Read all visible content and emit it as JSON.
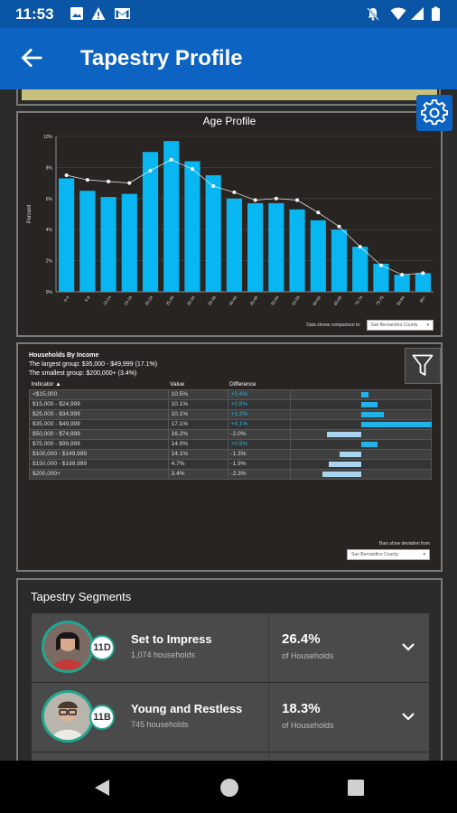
{
  "status_bar": {
    "time": "11:53",
    "icons_left": [
      "image-icon",
      "warning-icon",
      "gmail-icon"
    ],
    "icons_right": [
      "mute-icon",
      "wifi-icon",
      "signal-icon",
      "battery-icon"
    ]
  },
  "app_bar": {
    "title": "Tapestry Profile",
    "back_icon": "arrow-back-icon"
  },
  "settings_icon": "gear-icon",
  "age_profile": {
    "chart_data": {
      "type": "bar",
      "title": "Age Profile",
      "ylabel": "Percent",
      "ylim": [
        0,
        10
      ],
      "yticks": [
        "0%",
        "2%",
        "4%",
        "6%",
        "8%",
        "10%"
      ],
      "categories": [
        "0-4",
        "5-9",
        "10-14",
        "15-19",
        "20-24",
        "25-29",
        "30-34",
        "35-39",
        "40-44",
        "45-49",
        "50-54",
        "55-59",
        "60-64",
        "65-69",
        "70-74",
        "75-79",
        "80-84",
        "85+"
      ],
      "series": [
        {
          "values": [
            7.3,
            6.5,
            6.1,
            6.3,
            9.0,
            9.7,
            8.4,
            7.5,
            6.0,
            5.7,
            5.7,
            5.3,
            4.6,
            4.0,
            2.9,
            1.8,
            1.1,
            1.2
          ]
        },
        {
          "values": [
            7.5,
            7.2,
            7.1,
            7.0,
            7.8,
            8.5,
            7.9,
            6.8,
            6.4,
            5.9,
            6.0,
            5.9,
            5.1,
            4.2,
            2.9,
            1.7,
            1.1,
            1.2
          ]
        }
      ]
    },
    "footer_label": "Data shows comparison to:",
    "compare_select": "San Bernardino County"
  },
  "income": {
    "title": "Households By Income",
    "largest": "The largest group: $35,000 - $49,999 (17.1%)",
    "smallest": "The smallest group: $200,000+ (3.4%)",
    "columns": [
      "Indicator ▲",
      "Value",
      "Difference"
    ],
    "rows": [
      {
        "indicator": "<$15,000",
        "value": "10.5%",
        "diff": "+0.4%",
        "dev": 0.4
      },
      {
        "indicator": "$15,000 - $24,999",
        "value": "10.1%",
        "diff": "+0.9%",
        "dev": 0.9
      },
      {
        "indicator": "$25,000 - $34,999",
        "value": "10.1%",
        "diff": "+1.3%",
        "dev": 1.3
      },
      {
        "indicator": "$35,000 - $49,999",
        "value": "17.1%",
        "diff": "+4.1%",
        "dev": 4.1
      },
      {
        "indicator": "$50,000 - $74,999",
        "value": "16.2%",
        "diff": "-2.0%",
        "dev": -2.0
      },
      {
        "indicator": "$75,000 - $99,999",
        "value": "14.0%",
        "diff": "+0.9%",
        "dev": 0.9
      },
      {
        "indicator": "$100,000 - $149,999",
        "value": "14.1%",
        "diff": "-1.3%",
        "dev": -1.3
      },
      {
        "indicator": "$150,000 - $199,999",
        "value": "4.7%",
        "diff": "-1.9%",
        "dev": -1.9
      },
      {
        "indicator": "$200,000+",
        "value": "3.4%",
        "diff": "-2.3%",
        "dev": -2.3
      }
    ],
    "footer_label": "Bars show deviation from",
    "compare_select": "San Bernardino County",
    "filter_icon": "filter-icon"
  },
  "segments": {
    "title": "Tapestry Segments",
    "items": [
      {
        "code": "11D",
        "name": "Set to Impress",
        "households": "1,074 households",
        "pct": "26.4%",
        "of_label": "of Households"
      },
      {
        "code": "11B",
        "name": "Young and Restless",
        "households": "745 households",
        "pct": "18.3%",
        "of_label": "of Households"
      }
    ]
  },
  "colors": {
    "app_bar": "#0c63c2",
    "status_bar": "#0a55a5",
    "bar_blue": "#08b6f2",
    "positive": "#23b2e7",
    "negative": "#a8d4f0",
    "segment_ring": "#20a78f"
  },
  "nav_bar": [
    "back-triangle-icon",
    "home-circle-icon",
    "recents-square-icon"
  ]
}
